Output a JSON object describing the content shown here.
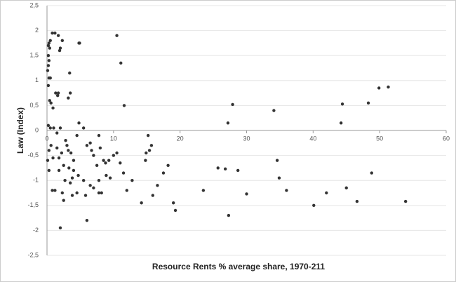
{
  "chart_data": {
    "type": "scatter",
    "x_label": "Resource Rents % average share, 1970-211",
    "y_label": "Law (Index)",
    "color": "#333333",
    "grid": true,
    "xlim": [
      0,
      60
    ],
    "xticks": [
      0,
      10,
      20,
      30,
      40,
      50,
      60
    ],
    "ylim": [
      -2.5,
      2.5
    ],
    "yticks": [
      {
        "value": -2.5,
        "label": "-2,5"
      },
      -2,
      {
        "value": -1.5,
        "label": "-1,5"
      },
      -1,
      {
        "value": -0.5,
        "label": "-0,5"
      },
      0,
      {
        "value": 0.5,
        "label": "0,5"
      },
      1,
      {
        "value": 1.5,
        "label": "1,5"
      },
      2,
      {
        "value": 2.5,
        "label": "2,5"
      }
    ],
    "x": [
      0.2,
      0.3,
      0.5,
      0.4,
      0.2,
      0.3,
      0.2,
      0.1,
      0.3,
      0.5,
      0.8,
      1.2,
      1.7,
      2.0,
      1.9,
      2.3,
      3.4,
      4.8,
      4.9,
      0.2,
      0.4,
      0.6,
      0.9,
      1.3,
      1.6,
      1.7,
      3.2,
      3.5,
      0.2,
      0.5,
      1.0,
      1.5,
      2.0,
      0.3,
      0.6,
      0.9,
      1.5,
      1.8,
      2.2,
      2.8,
      3.0,
      3.2,
      3.6,
      2.5,
      3.3,
      4.0,
      4.5,
      4.8,
      5.5,
      6.0,
      6.5,
      6.7,
      7.0,
      7.5,
      8.0,
      8.5,
      7.8,
      8.8,
      9.3,
      10.0,
      10.5,
      11.0,
      11.5,
      9.5,
      8.9,
      7.8,
      7.0,
      6.5,
      5.5,
      4.7,
      4.0,
      3.8,
      3.5,
      2.7,
      0.8,
      1.2,
      2.3,
      3.8,
      4.5,
      5.8,
      7.8,
      8.2,
      6.0,
      2.0,
      2.5,
      0.1,
      0.3,
      1.8,
      10.5,
      11.1,
      11.6,
      12.0,
      12.8,
      14.2,
      14.8,
      14.9,
      15.2,
      15.4,
      15.7,
      15.9,
      16.6,
      17.5,
      18.2,
      19.0,
      19.3,
      23.5,
      25.7,
      26.8,
      27.2,
      27.3,
      27.9,
      28.7,
      30.0,
      34.1,
      34.6,
      34.9,
      36.0,
      40.1,
      42.0,
      44.2,
      44.4,
      45.0,
      46.6,
      48.3,
      48.8,
      49.9,
      51.3,
      53.9
    ],
    "values": [
      1.7,
      1.75,
      1.8,
      1.65,
      1.5,
      1.4,
      1.3,
      1.2,
      1.05,
      1.05,
      1.95,
      1.95,
      1.9,
      1.65,
      1.6,
      1.8,
      1.15,
      1.75,
      1.75,
      0.9,
      0.6,
      0.55,
      0.45,
      0.75,
      0.7,
      0.75,
      0.65,
      0.75,
      0.1,
      0.05,
      0.05,
      -0.05,
      0.05,
      -0.4,
      -0.3,
      -0.55,
      -0.35,
      -0.55,
      -0.45,
      -0.2,
      -0.3,
      -0.4,
      -0.45,
      -0.7,
      -0.75,
      -0.6,
      -0.1,
      0.15,
      0.05,
      -0.3,
      -0.25,
      -0.4,
      -0.5,
      -0.7,
      -0.35,
      -0.6,
      -0.1,
      -0.65,
      -0.6,
      -0.5,
      -0.45,
      -0.65,
      -0.85,
      -0.95,
      -0.9,
      -1.0,
      -1.15,
      -1.1,
      -1.0,
      -0.9,
      -0.8,
      -0.95,
      -1.05,
      -1.0,
      -1.2,
      -1.2,
      -1.25,
      -1.3,
      -1.25,
      -1.3,
      -1.25,
      -1.25,
      -1.8,
      -1.95,
      -1.4,
      -0.6,
      -0.8,
      -0.8,
      1.9,
      1.35,
      0.5,
      -1.2,
      -1.0,
      -1.45,
      -0.6,
      -0.45,
      -0.1,
      -0.4,
      -0.3,
      -1.3,
      -1.1,
      -0.85,
      -0.7,
      -1.45,
      -1.6,
      -1.2,
      -0.75,
      -0.77,
      0.15,
      -1.7,
      0.52,
      -0.8,
      -1.27,
      0.4,
      -0.6,
      -0.95,
      -1.2,
      -1.5,
      -1.25,
      0.15,
      0.53,
      -1.15,
      -1.42,
      0.55,
      -0.85,
      0.85,
      0.87,
      -1.42
    ]
  }
}
